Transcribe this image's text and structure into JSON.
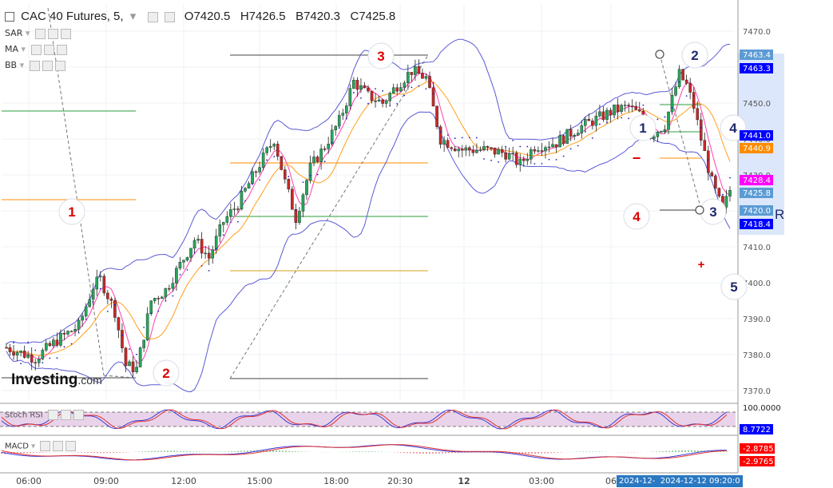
{
  "header": {
    "symbol": "CAC 40 Futures, 5,",
    "open": "O7420.5",
    "high": "H7426.5",
    "bid": "B7420.3",
    "close": "C7425.8"
  },
  "indicators": [
    {
      "label": "SAR"
    },
    {
      "label": "MA"
    },
    {
      "label": "BB"
    }
  ],
  "sub_panels": {
    "stoch_label": "Stoch RSI",
    "macd_label": "MACD",
    "stoch_values": [
      "100.0000",
      "8.7722"
    ],
    "macd_values": [
      "-2.8785",
      "-2.9765"
    ]
  },
  "watermark": "Investing",
  "watermark_suffix": ".com",
  "price_labels": [
    {
      "text": "7463.4",
      "color": "#5b9bd5"
    },
    {
      "text": "7463.3",
      "color": "#0000ff"
    },
    {
      "text": "7441.0",
      "color": "#0000ff"
    },
    {
      "text": "7440.9",
      "color": "#ff8c00"
    },
    {
      "text": "7428.4",
      "color": "#ff00ff"
    },
    {
      "text": "7425.8",
      "color": "#5b9bd5"
    },
    {
      "text": "7420.0",
      "color": "#5b9bd5"
    },
    {
      "text": "7418.4",
      "color": "#0000ff"
    }
  ],
  "right_marker": "R",
  "time_footer": [
    "2024-12-",
    "2024-12-12 09:20:0"
  ],
  "wave_labels": [
    {
      "text": "1",
      "color": "#e00000"
    },
    {
      "text": "2",
      "color": "#e00000"
    },
    {
      "text": "3",
      "color": "#e00000"
    },
    {
      "text": "4",
      "color": "#e00000"
    },
    {
      "text": "1",
      "color": "#1f2a6b"
    },
    {
      "text": "2",
      "color": "#1f2a6b"
    },
    {
      "text": "3",
      "color": "#1f2a6b"
    },
    {
      "text": "4",
      "color": "#1f2a6b"
    },
    {
      "text": "5",
      "color": "#1f2a6b"
    }
  ],
  "chart_data": {
    "type": "candlestick",
    "xlabels": [
      "06:00",
      "09:00",
      "12:00",
      "15:00",
      "18:00",
      "20:30",
      "12",
      "03:00",
      "06"
    ],
    "yticks": [
      7370.0,
      7380.0,
      7390.0,
      7400.0,
      7410.0,
      7420.0,
      7430.0,
      7440.0,
      7450.0,
      7460.0,
      7470.0
    ],
    "ylim": [
      7367,
      7475
    ],
    "close_path": [
      [
        0,
        7382
      ],
      [
        8,
        7379
      ],
      [
        14,
        7384
      ],
      [
        20,
        7388
      ],
      [
        24,
        7399
      ],
      [
        26,
        7401
      ],
      [
        30,
        7392
      ],
      [
        33,
        7377
      ],
      [
        36,
        7376
      ],
      [
        40,
        7395
      ],
      [
        44,
        7398
      ],
      [
        48,
        7405
      ],
      [
        52,
        7412
      ],
      [
        56,
        7407
      ],
      [
        60,
        7417
      ],
      [
        64,
        7422
      ],
      [
        70,
        7433
      ],
      [
        74,
        7440
      ],
      [
        77,
        7428
      ],
      [
        80,
        7418
      ],
      [
        84,
        7432
      ],
      [
        88,
        7438
      ],
      [
        92,
        7445
      ],
      [
        96,
        7456
      ],
      [
        100,
        7452
      ],
      [
        104,
        7450
      ],
      [
        108,
        7455
      ],
      [
        112,
        7459
      ],
      [
        116,
        7457
      ],
      [
        120,
        7440
      ],
      [
        126,
        7437
      ],
      [
        132,
        7437
      ],
      [
        138,
        7436
      ],
      [
        142,
        7433
      ],
      [
        146,
        7438
      ],
      [
        152,
        7439
      ],
      [
        158,
        7443
      ],
      [
        164,
        7446
      ],
      [
        168,
        7448
      ],
      [
        172,
        7449
      ],
      [
        176,
        7446
      ],
      [
        178,
        7441
      ],
      [
        182,
        7444
      ],
      [
        186,
        7458
      ],
      [
        188,
        7455
      ],
      [
        190,
        7449
      ],
      [
        192,
        7440
      ],
      [
        195,
        7428
      ],
      [
        198,
        7420
      ],
      [
        200,
        7425.8
      ]
    ]
  }
}
